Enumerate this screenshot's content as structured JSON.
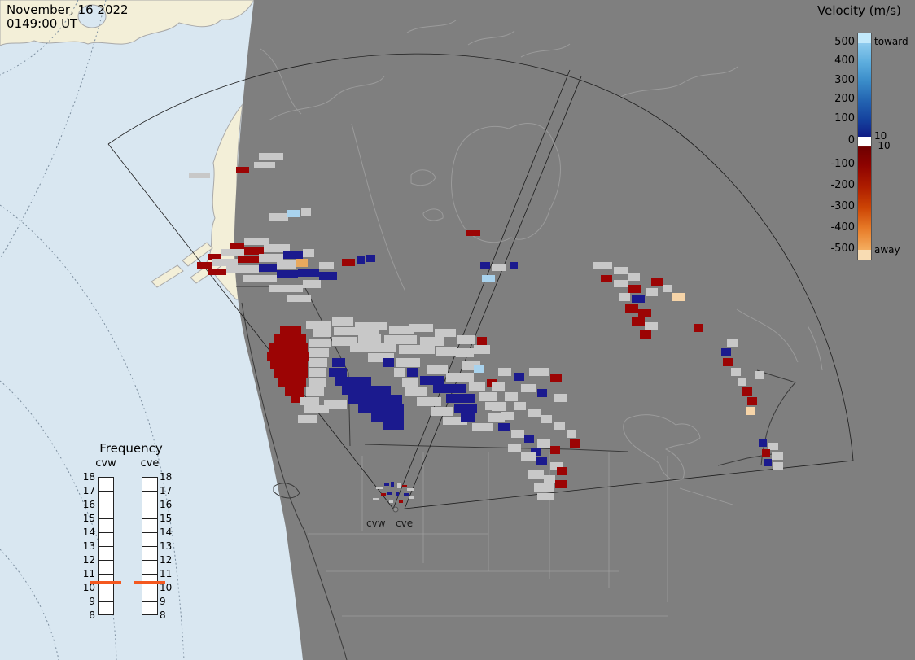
{
  "header": {
    "date_line1": "November, 16 2022",
    "date_line2": "0149:00 UT"
  },
  "velocity_legend": {
    "title": "Velocity (m/s)",
    "toward_label": "toward",
    "away_label": "away",
    "left_tick_labels": [
      "500",
      "400",
      "300",
      "200",
      "100",
      "0",
      "-100",
      "-200",
      "-300",
      "-400",
      "-500"
    ],
    "right_tick_labels": [
      "10",
      "-10"
    ]
  },
  "frequency_legend": {
    "title": "Frequency",
    "columns": [
      {
        "label": "cvw"
      },
      {
        "label": "cve"
      }
    ],
    "tick_labels": [
      "18",
      "17",
      "16",
      "15",
      "14",
      "13",
      "12",
      "11",
      "10",
      "9",
      "8"
    ],
    "marker_color": "#f4581f",
    "marker_value": "11"
  },
  "radar_site": {
    "labels": [
      "cvw",
      "cve"
    ]
  },
  "colors": {
    "g": "#c8c8c8",
    "r": "#9c0404",
    "b": "#1b1a8e",
    "lb": "#a9d3ee",
    "o": "#e8a95e",
    "p": "#f6d4a8"
  },
  "cells": [
    [
      318,
      188,
      30,
      9,
      "g"
    ],
    [
      290,
      205,
      16,
      8,
      "r"
    ],
    [
      312,
      199,
      26,
      8,
      "g"
    ],
    [
      232,
      212,
      26,
      7,
      "g"
    ],
    [
      330,
      262,
      24,
      9,
      "g"
    ],
    [
      352,
      258,
      16,
      9,
      "lb"
    ],
    [
      370,
      256,
      12,
      9,
      "g"
    ],
    [
      300,
      292,
      30,
      9,
      "g"
    ],
    [
      282,
      298,
      18,
      8,
      "r"
    ],
    [
      272,
      306,
      28,
      9,
      "g"
    ],
    [
      256,
      312,
      16,
      8,
      "r"
    ],
    [
      300,
      304,
      24,
      9,
      "r"
    ],
    [
      324,
      300,
      32,
      10,
      "g"
    ],
    [
      242,
      322,
      18,
      8,
      "r"
    ],
    [
      260,
      318,
      32,
      9,
      "g"
    ],
    [
      292,
      314,
      26,
      9,
      "r"
    ],
    [
      318,
      312,
      30,
      10,
      "g"
    ],
    [
      348,
      308,
      24,
      10,
      "b"
    ],
    [
      372,
      306,
      14,
      10,
      "g"
    ],
    [
      256,
      330,
      22,
      8,
      "r"
    ],
    [
      278,
      326,
      40,
      9,
      "g"
    ],
    [
      318,
      324,
      22,
      10,
      "b"
    ],
    [
      340,
      320,
      24,
      10,
      "g"
    ],
    [
      364,
      318,
      14,
      10,
      "o"
    ],
    [
      298,
      338,
      42,
      9,
      "g"
    ],
    [
      340,
      332,
      26,
      10,
      "b"
    ],
    [
      366,
      330,
      26,
      10,
      "b"
    ],
    [
      392,
      334,
      22,
      10,
      "b"
    ],
    [
      330,
      350,
      42,
      9,
      "g"
    ],
    [
      372,
      344,
      22,
      10,
      "g"
    ],
    [
      352,
      362,
      30,
      9,
      "g"
    ],
    [
      392,
      322,
      18,
      9,
      "g"
    ],
    [
      420,
      318,
      16,
      9,
      "r"
    ],
    [
      438,
      315,
      10,
      9,
      "b"
    ],
    [
      449,
      313,
      12,
      9,
      "b"
    ],
    [
      572,
      283,
      18,
      7,
      "r"
    ],
    [
      590,
      322,
      12,
      8,
      "b"
    ],
    [
      604,
      325,
      18,
      8,
      "g"
    ],
    [
      626,
      322,
      10,
      8,
      "b"
    ],
    [
      592,
      338,
      16,
      8,
      "lb"
    ],
    [
      344,
      400,
      26,
      10,
      "r"
    ],
    [
      336,
      410,
      40,
      11,
      "r"
    ],
    [
      330,
      421,
      48,
      11,
      "r"
    ],
    [
      328,
      432,
      52,
      11,
      "r"
    ],
    [
      332,
      443,
      46,
      11,
      "r"
    ],
    [
      336,
      454,
      42,
      11,
      "r"
    ],
    [
      342,
      465,
      34,
      11,
      "r"
    ],
    [
      350,
      476,
      24,
      10,
      "r"
    ],
    [
      358,
      486,
      16,
      9,
      "r"
    ],
    [
      376,
      394,
      30,
      10,
      "g"
    ],
    [
      408,
      390,
      26,
      10,
      "g"
    ],
    [
      436,
      396,
      40,
      10,
      "g"
    ],
    [
      478,
      400,
      30,
      10,
      "g"
    ],
    [
      502,
      398,
      30,
      10,
      "g"
    ],
    [
      534,
      404,
      26,
      10,
      "g"
    ],
    [
      562,
      412,
      22,
      11,
      "g"
    ],
    [
      384,
      404,
      22,
      10,
      "g"
    ],
    [
      410,
      402,
      56,
      10,
      "g"
    ],
    [
      472,
      412,
      40,
      11,
      "g"
    ],
    [
      516,
      414,
      30,
      11,
      "g"
    ],
    [
      380,
      416,
      26,
      11,
      "g"
    ],
    [
      408,
      414,
      30,
      11,
      "g"
    ],
    [
      440,
      410,
      28,
      11,
      "g"
    ],
    [
      430,
      422,
      56,
      11,
      "g"
    ],
    [
      490,
      424,
      44,
      11,
      "g"
    ],
    [
      536,
      426,
      26,
      11,
      "g"
    ],
    [
      560,
      428,
      22,
      11,
      "g"
    ],
    [
      582,
      424,
      20,
      11,
      "g"
    ],
    [
      380,
      428,
      24,
      11,
      "g"
    ],
    [
      452,
      434,
      32,
      11,
      "g"
    ],
    [
      486,
      440,
      30,
      11,
      "g"
    ],
    [
      524,
      448,
      26,
      11,
      "g"
    ],
    [
      548,
      458,
      24,
      11,
      "g"
    ],
    [
      568,
      444,
      22,
      11,
      "g"
    ],
    [
      380,
      440,
      22,
      11,
      "g"
    ],
    [
      380,
      452,
      20,
      11,
      "g"
    ],
    [
      380,
      464,
      20,
      11,
      "g"
    ],
    [
      376,
      476,
      22,
      11,
      "g"
    ],
    [
      368,
      488,
      24,
      10,
      "g"
    ],
    [
      374,
      498,
      30,
      10,
      "g"
    ],
    [
      366,
      510,
      24,
      10,
      "g"
    ],
    [
      398,
      492,
      28,
      11,
      "g"
    ],
    [
      494,
      464,
      20,
      11,
      "g"
    ],
    [
      498,
      476,
      26,
      11,
      "g"
    ],
    [
      484,
      452,
      14,
      11,
      "g"
    ],
    [
      512,
      488,
      30,
      11,
      "g"
    ],
    [
      530,
      500,
      26,
      11,
      "g"
    ],
    [
      544,
      512,
      30,
      10,
      "g"
    ],
    [
      576,
      470,
      20,
      11,
      "g"
    ],
    [
      560,
      458,
      22,
      11,
      "g"
    ],
    [
      588,
      482,
      22,
      11,
      "g"
    ],
    [
      596,
      494,
      20,
      10,
      "g"
    ],
    [
      580,
      520,
      26,
      10,
      "g"
    ],
    [
      600,
      508,
      20,
      10,
      "g"
    ],
    [
      404,
      452,
      22,
      11,
      "b"
    ],
    [
      412,
      463,
      44,
      11,
      "b"
    ],
    [
      420,
      474,
      60,
      11,
      "b"
    ],
    [
      428,
      485,
      66,
      11,
      "b"
    ],
    [
      440,
      496,
      56,
      11,
      "b"
    ],
    [
      456,
      507,
      40,
      11,
      "b"
    ],
    [
      470,
      518,
      26,
      10,
      "b"
    ],
    [
      408,
      440,
      16,
      11,
      "b"
    ],
    [
      470,
      440,
      14,
      11,
      "b"
    ],
    [
      500,
      452,
      14,
      11,
      "b"
    ],
    [
      516,
      462,
      30,
      11,
      "b"
    ],
    [
      532,
      472,
      40,
      11,
      "b"
    ],
    [
      548,
      484,
      36,
      11,
      "b"
    ],
    [
      558,
      496,
      28,
      11,
      "b"
    ],
    [
      566,
      508,
      18,
      10,
      "b"
    ],
    [
      582,
      448,
      12,
      10,
      "lb"
    ],
    [
      586,
      414,
      12,
      10,
      "r"
    ],
    [
      612,
      452,
      16,
      10,
      "g"
    ],
    [
      632,
      458,
      12,
      10,
      "b"
    ],
    [
      650,
      452,
      24,
      10,
      "g"
    ],
    [
      676,
      460,
      14,
      10,
      "r"
    ],
    [
      598,
      466,
      12,
      10,
      "r"
    ],
    [
      640,
      472,
      18,
      10,
      "g"
    ],
    [
      660,
      478,
      12,
      10,
      "b"
    ],
    [
      680,
      484,
      16,
      10,
      "g"
    ],
    [
      604,
      470,
      16,
      11,
      "g"
    ],
    [
      620,
      482,
      16,
      11,
      "g"
    ],
    [
      604,
      494,
      18,
      11,
      "g"
    ],
    [
      616,
      506,
      16,
      10,
      "g"
    ],
    [
      632,
      494,
      14,
      10,
      "g"
    ],
    [
      648,
      502,
      16,
      10,
      "g"
    ],
    [
      664,
      510,
      14,
      10,
      "g"
    ],
    [
      680,
      518,
      14,
      10,
      "g"
    ],
    [
      696,
      528,
      12,
      10,
      "g"
    ],
    [
      612,
      520,
      14,
      10,
      "b"
    ],
    [
      628,
      528,
      16,
      10,
      "g"
    ],
    [
      644,
      534,
      12,
      10,
      "b"
    ],
    [
      660,
      540,
      16,
      10,
      "g"
    ],
    [
      676,
      548,
      12,
      10,
      "r"
    ],
    [
      652,
      550,
      12,
      10,
      "b"
    ],
    [
      624,
      546,
      16,
      10,
      "g"
    ],
    [
      640,
      556,
      18,
      10,
      "g"
    ],
    [
      658,
      562,
      14,
      10,
      "b"
    ],
    [
      676,
      568,
      16,
      10,
      "g"
    ],
    [
      700,
      540,
      12,
      10,
      "r"
    ],
    [
      648,
      578,
      20,
      10,
      "g"
    ],
    [
      668,
      584,
      14,
      10,
      "g"
    ],
    [
      684,
      574,
      12,
      10,
      "r"
    ],
    [
      656,
      594,
      24,
      10,
      "g"
    ],
    [
      682,
      590,
      14,
      10,
      "r"
    ],
    [
      660,
      606,
      20,
      9,
      "g"
    ],
    [
      728,
      322,
      24,
      9,
      "g"
    ],
    [
      754,
      328,
      18,
      9,
      "g"
    ],
    [
      738,
      338,
      14,
      9,
      "r"
    ],
    [
      754,
      344,
      18,
      9,
      "g"
    ],
    [
      772,
      336,
      14,
      9,
      "g"
    ],
    [
      772,
      350,
      16,
      10,
      "r"
    ],
    [
      760,
      360,
      14,
      10,
      "g"
    ],
    [
      776,
      362,
      16,
      10,
      "b"
    ],
    [
      794,
      354,
      14,
      10,
      "g"
    ],
    [
      800,
      342,
      14,
      9,
      "r"
    ],
    [
      814,
      350,
      12,
      9,
      "g"
    ],
    [
      826,
      360,
      16,
      10,
      "p"
    ],
    [
      768,
      374,
      16,
      10,
      "r"
    ],
    [
      784,
      380,
      16,
      10,
      "r"
    ],
    [
      776,
      390,
      16,
      10,
      "r"
    ],
    [
      792,
      396,
      16,
      10,
      "g"
    ],
    [
      786,
      406,
      14,
      10,
      "r"
    ],
    [
      852,
      398,
      12,
      10,
      "r"
    ],
    [
      893,
      416,
      14,
      10,
      "g"
    ],
    [
      886,
      428,
      12,
      10,
      "b"
    ],
    [
      888,
      440,
      12,
      10,
      "r"
    ],
    [
      898,
      452,
      12,
      10,
      "g"
    ],
    [
      928,
      456,
      10,
      10,
      "g"
    ],
    [
      906,
      464,
      10,
      10,
      "g"
    ],
    [
      912,
      476,
      12,
      10,
      "r"
    ],
    [
      918,
      488,
      12,
      10,
      "r"
    ],
    [
      916,
      500,
      12,
      10,
      "p"
    ],
    [
      932,
      540,
      10,
      9,
      "b"
    ],
    [
      944,
      544,
      12,
      9,
      "g"
    ],
    [
      936,
      552,
      10,
      9,
      "r"
    ],
    [
      948,
      556,
      14,
      9,
      "g"
    ],
    [
      938,
      564,
      10,
      9,
      "b"
    ],
    [
      950,
      568,
      12,
      9,
      "g"
    ],
    [
      462,
      598,
      8,
      3,
      "g"
    ],
    [
      472,
      594,
      6,
      3,
      "b"
    ],
    [
      480,
      592,
      4,
      6,
      "b"
    ],
    [
      488,
      594,
      4,
      6,
      "g"
    ],
    [
      494,
      596,
      6,
      3,
      "r"
    ],
    [
      500,
      600,
      8,
      3,
      "g"
    ],
    [
      468,
      606,
      6,
      3,
      "r"
    ],
    [
      476,
      604,
      5,
      4,
      "b"
    ],
    [
      486,
      604,
      4,
      5,
      "b"
    ],
    [
      496,
      606,
      6,
      3,
      "b"
    ],
    [
      458,
      612,
      8,
      3,
      "g"
    ],
    [
      502,
      610,
      7,
      3,
      "g"
    ],
    [
      478,
      614,
      5,
      4,
      "g"
    ],
    [
      490,
      614,
      5,
      4,
      "r"
    ]
  ]
}
